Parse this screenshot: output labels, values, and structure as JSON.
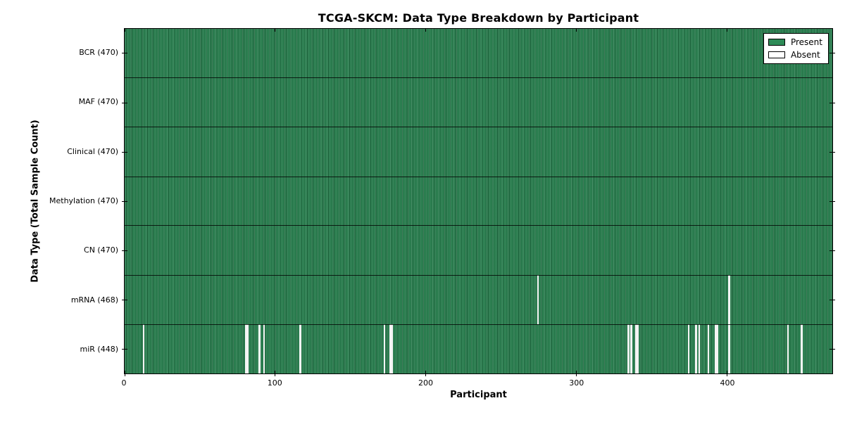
{
  "chart_data": {
    "type": "heatmap",
    "title": "TCGA-SKCM: Data Type Breakdown by Participant",
    "xlabel": "Participant",
    "ylabel": "Data Type (Total Sample Count)",
    "xlim": [
      0,
      470
    ],
    "x_ticks": [
      0,
      100,
      200,
      300,
      400
    ],
    "grid": "horizontal row separators only",
    "legend_position": "upper-right",
    "colors": {
      "present": "#2e8b57",
      "absent": "#ffffff",
      "plot_border": "#000000",
      "background": "#ffffff"
    },
    "legend": [
      {
        "label": "Present",
        "color": "#2e8b57"
      },
      {
        "label": "Absent",
        "color": "#ffffff"
      }
    ],
    "rows": [
      {
        "label": "BCR (470)",
        "data_type": "BCR",
        "total": 470,
        "absent_participants": []
      },
      {
        "label": "MAF (470)",
        "data_type": "MAF",
        "total": 470,
        "absent_participants": []
      },
      {
        "label": "Clinical (470)",
        "data_type": "Clinical",
        "total": 470,
        "absent_participants": []
      },
      {
        "label": "Methylation (470)",
        "data_type": "Methylation",
        "total": 470,
        "absent_participants": []
      },
      {
        "label": "CN (470)",
        "data_type": "CN",
        "total": 470,
        "absent_participants": []
      },
      {
        "label": "mRNA (468)",
        "data_type": "mRNA",
        "total": 468,
        "absent_participants": [
          274,
          401
        ]
      },
      {
        "label": "miR (448)",
        "data_type": "miR",
        "total": 448,
        "absent_participants": [
          12,
          80,
          81,
          89,
          92,
          116,
          172,
          176,
          177,
          334,
          336,
          339,
          340,
          374,
          379,
          381,
          387,
          392,
          393,
          401,
          440,
          449
        ]
      }
    ]
  }
}
